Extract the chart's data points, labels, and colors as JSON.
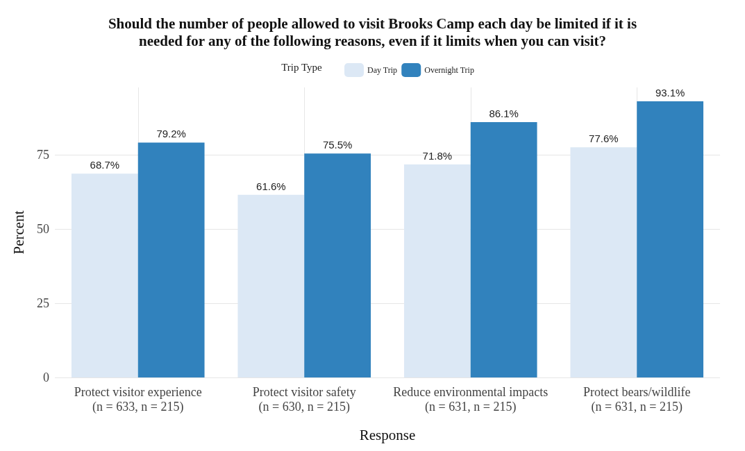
{
  "chart_data": {
    "type": "bar",
    "title": "Should the number of people allowed to visit Brooks Camp each day be limited if it is\nneeded for any of the following reasons, even if it limits when you can visit?",
    "xlabel": "Response",
    "ylabel": "Percent",
    "legend_title": "Trip Type",
    "legend": "top",
    "categories": [
      "Protect visitor experience\n(n = 633, n = 215)",
      "Protect visitor safety\n(n = 630, n = 215)",
      "Reduce environmental impacts\n(n = 631, n = 215)",
      "Protect bears/wildlife\n(n = 631, n = 215)"
    ],
    "series": [
      {
        "name": "Day Trip",
        "color": "#dce8f5",
        "values": [
          68.7,
          61.6,
          71.8,
          77.6
        ],
        "value_labels": [
          "68.7%",
          "61.6%",
          "71.8%",
          "77.6%"
        ]
      },
      {
        "name": "Overnight Trip",
        "color": "#3182bd",
        "values": [
          79.2,
          75.5,
          86.1,
          93.1
        ],
        "value_labels": [
          "79.2%",
          "75.5%",
          "86.1%",
          "93.1%"
        ]
      }
    ],
    "ylim": [
      0,
      97.8
    ],
    "yticks": [
      0,
      25,
      50,
      75
    ],
    "grid": true
  }
}
